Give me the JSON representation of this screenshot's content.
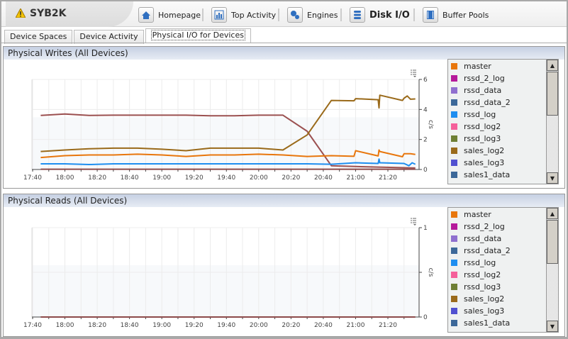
{
  "header": {
    "title": "SYB2K",
    "nav": [
      {
        "label": "Homepage",
        "icon": "home-icon"
      },
      {
        "label": "Top Activity",
        "icon": "bar-chart-icon"
      },
      {
        "label": "Engines",
        "icon": "gears-icon"
      },
      {
        "label": "Disk I/O",
        "icon": "database-icon",
        "active": true
      },
      {
        "label": "Buffer Pools",
        "icon": "buffer-icon"
      }
    ]
  },
  "tabs": [
    {
      "label": "Device Spaces"
    },
    {
      "label": "Device Activity"
    },
    {
      "label": "Physical I/O for Devices",
      "active": true
    }
  ],
  "legend": [
    {
      "name": "master",
      "color": "#e8760c"
    },
    {
      "name": "rssd_2_log",
      "color": "#b5199a"
    },
    {
      "name": "rssd_data",
      "color": "#8f6fcf"
    },
    {
      "name": "rssd_data_2",
      "color": "#3c6899"
    },
    {
      "name": "rssd_log",
      "color": "#1e8ef0"
    },
    {
      "name": "rssd_log2",
      "color": "#f5609a"
    },
    {
      "name": "rssd_log3",
      "color": "#6e7f34"
    },
    {
      "name": "sales_log2",
      "color": "#9a6a1a"
    },
    {
      "name": "sales_log3",
      "color": "#5050d0"
    },
    {
      "name": "sales1_data",
      "color": "#3c6899"
    }
  ],
  "chart_data": [
    {
      "type": "line",
      "title": "Physical Writes (All Devices)",
      "ylabel": "c/s",
      "ylim": [
        0,
        6
      ],
      "yticks": [
        "0",
        "2",
        "4",
        "6"
      ],
      "xticks": [
        "17:40",
        "18:00",
        "18:20",
        "18:40",
        "19:00",
        "19:20",
        "19:40",
        "20:00",
        "20:20",
        "20:40",
        "21:00",
        "21:20"
      ],
      "series": [
        {
          "color": "#9b5050",
          "points": [
            [
              "17:45",
              3.6
            ],
            [
              "18:00",
              3.7
            ],
            [
              "18:15",
              3.6
            ],
            [
              "18:30",
              3.62
            ],
            [
              "19:00",
              3.62
            ],
            [
              "19:15",
              3.62
            ],
            [
              "19:30",
              3.58
            ],
            [
              "19:45",
              3.58
            ],
            [
              "20:00",
              3.62
            ],
            [
              "20:15",
              3.62
            ],
            [
              "20:30",
              2.55
            ],
            [
              "20:45",
              0.25
            ],
            [
              "21:00",
              0.2
            ],
            [
              "21:37",
              0.1
            ]
          ]
        },
        {
          "name": "sales_log2",
          "color": "#9a6a1a",
          "points": [
            [
              "17:45",
              1.2
            ],
            [
              "18:00",
              1.3
            ],
            [
              "18:15",
              1.38
            ],
            [
              "18:30",
              1.42
            ],
            [
              "18:45",
              1.42
            ],
            [
              "19:00",
              1.35
            ],
            [
              "19:15",
              1.25
            ],
            [
              "19:30",
              1.42
            ],
            [
              "20:00",
              1.42
            ],
            [
              "20:15",
              1.3
            ],
            [
              "20:30",
              2.3
            ],
            [
              "20:45",
              4.6
            ],
            [
              "20:59",
              4.58
            ],
            [
              "21:00",
              4.72
            ],
            [
              "21:14",
              4.65
            ],
            [
              "21:14.5",
              4.1
            ],
            [
              "21:15",
              4.95
            ],
            [
              "21:29",
              4.6
            ],
            [
              "21:30",
              4.75
            ],
            [
              "21:32",
              4.9
            ],
            [
              "21:34",
              4.68
            ],
            [
              "21:37",
              4.7
            ]
          ]
        },
        {
          "name": "master",
          "color": "#e8760c",
          "points": [
            [
              "17:45",
              0.8
            ],
            [
              "18:00",
              0.92
            ],
            [
              "18:15",
              0.97
            ],
            [
              "18:30",
              0.97
            ],
            [
              "18:45",
              1.02
            ],
            [
              "19:00",
              0.97
            ],
            [
              "19:15",
              0.87
            ],
            [
              "19:30",
              0.97
            ],
            [
              "19:45",
              0.97
            ],
            [
              "20:00",
              1.02
            ],
            [
              "20:15",
              0.97
            ],
            [
              "20:30",
              0.87
            ],
            [
              "20:45",
              0.92
            ],
            [
              "20:59",
              0.88
            ],
            [
              "21:00",
              1.25
            ],
            [
              "21:14",
              0.9
            ],
            [
              "21:14.5",
              1.3
            ],
            [
              "21:15",
              1.2
            ],
            [
              "21:29",
              0.85
            ],
            [
              "21:30",
              1.05
            ],
            [
              "21:34",
              1.05
            ],
            [
              "21:37",
              1.0
            ]
          ]
        },
        {
          "name": "rssd_log",
          "color": "#1e8ef0",
          "points": [
            [
              "17:45",
              0.38
            ],
            [
              "18:00",
              0.38
            ],
            [
              "18:15",
              0.33
            ],
            [
              "18:30",
              0.38
            ],
            [
              "20:30",
              0.38
            ],
            [
              "20:45",
              0.35
            ],
            [
              "21:00",
              0.45
            ],
            [
              "21:14",
              0.4
            ],
            [
              "21:14.5",
              0.7
            ],
            [
              "21:15",
              0.45
            ],
            [
              "21:30",
              0.4
            ],
            [
              "21:33",
              0.25
            ],
            [
              "21:35",
              0.45
            ],
            [
              "21:37",
              0.35
            ]
          ]
        },
        {
          "color": "#8c4a4a",
          "points": [
            [
              "17:45",
              0.02
            ],
            [
              "21:37",
              0.02
            ]
          ]
        }
      ]
    },
    {
      "type": "line",
      "title": "Physical Reads (All Devices)",
      "ylabel": "c/s",
      "ylim": [
        0,
        1
      ],
      "yticks": [
        "0",
        "",
        "1"
      ],
      "xticks": [
        "17:40",
        "18:00",
        "18:20",
        "18:40",
        "19:00",
        "19:20",
        "19:40",
        "20:00",
        "20:20",
        "20:40",
        "21:00",
        "21:20"
      ],
      "series": [
        {
          "color": "#8c4a4a",
          "points": [
            [
              "17:45",
              0
            ],
            [
              "21:37",
              0
            ]
          ]
        }
      ]
    }
  ]
}
